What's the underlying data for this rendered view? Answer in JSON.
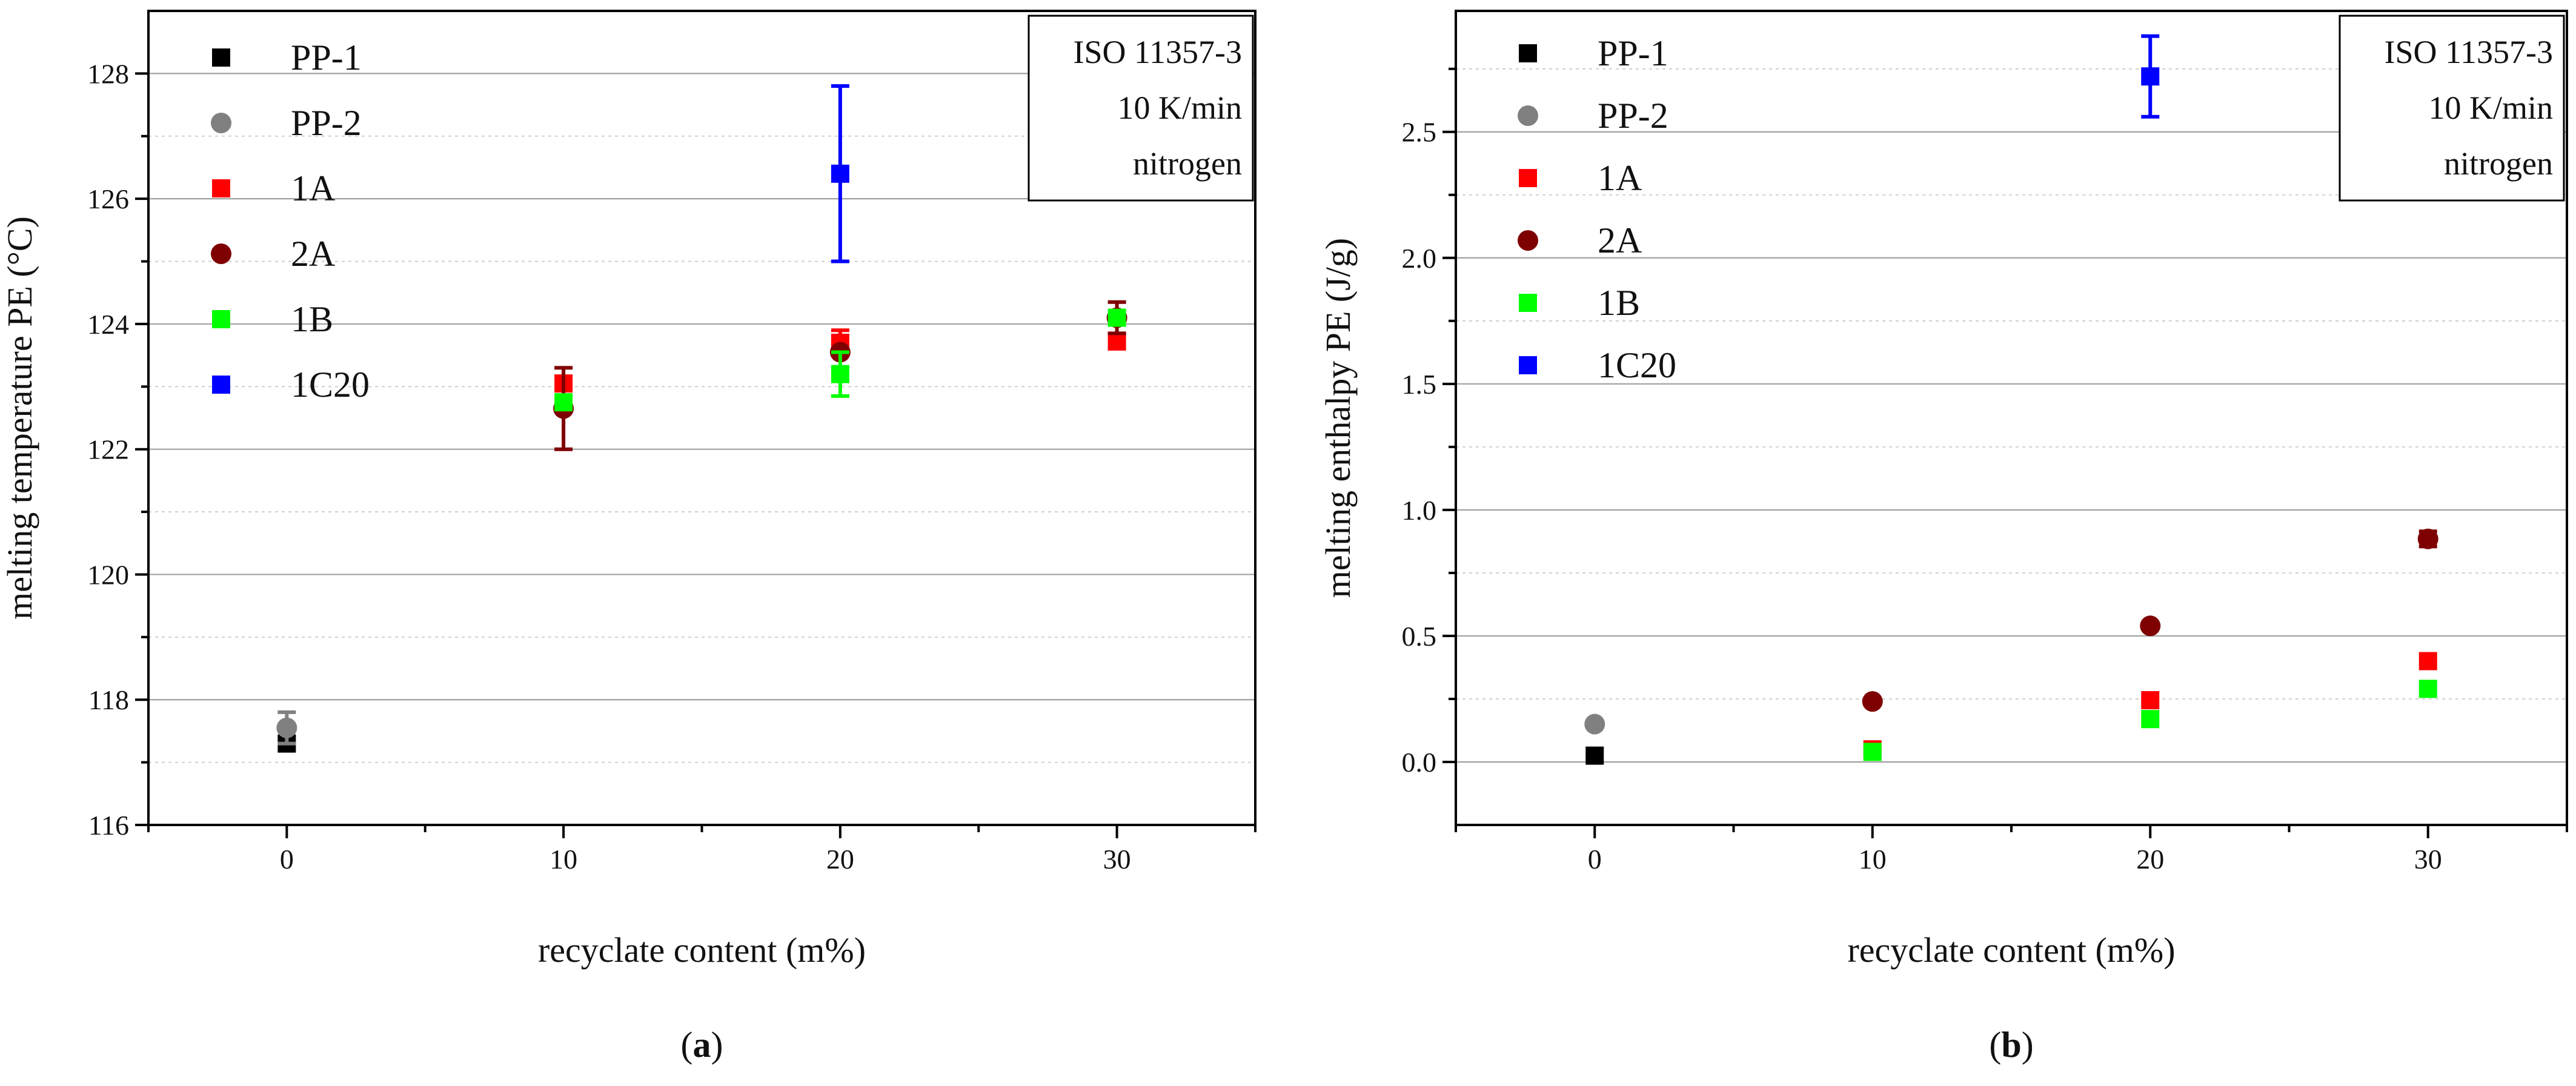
{
  "chart_data": [
    {
      "type": "scatter",
      "panel_label": "a",
      "xlabel": "recyclate content (m%)",
      "ylabel": "melting temperature PE (°C)",
      "xlim": [
        -5,
        35
      ],
      "ylim": [
        116,
        129
      ],
      "xticks": [
        0,
        10,
        20,
        30
      ],
      "yticks": [
        116,
        118,
        120,
        122,
        124,
        126,
        128
      ],
      "annotation": [
        "ISO 11357-3",
        "10 K/min",
        "nitrogen"
      ],
      "series": [
        {
          "name": "PP-1",
          "marker": "square",
          "color": "#000000",
          "points": [
            {
              "x": 0,
              "y": 117.3
            }
          ]
        },
        {
          "name": "PP-2",
          "marker": "circle",
          "color": "#808080",
          "points": [
            {
              "x": 0,
              "y": 117.55,
              "err": 0.25
            }
          ]
        },
        {
          "name": "1A",
          "marker": "square",
          "color": "#ff0000",
          "points": [
            {
              "x": 10,
              "y": 123.05
            },
            {
              "x": 20,
              "y": 123.7,
              "err": 0.2
            },
            {
              "x": 30,
              "y": 123.72
            }
          ]
        },
        {
          "name": "2A",
          "marker": "circle",
          "color": "#7f0000",
          "points": [
            {
              "x": 10,
              "y": 122.65,
              "err": 0.65
            },
            {
              "x": 20,
              "y": 123.55
            },
            {
              "x": 30,
              "y": 124.1,
              "err": 0.25
            }
          ]
        },
        {
          "name": "1B",
          "marker": "square",
          "color": "#00ff00",
          "points": [
            {
              "x": 10,
              "y": 122.75
            },
            {
              "x": 20,
              "y": 123.2,
              "err": 0.35
            },
            {
              "x": 30,
              "y": 124.1
            }
          ]
        },
        {
          "name": "1C20",
          "marker": "square",
          "color": "#0000ff",
          "points": [
            {
              "x": 20,
              "y": 126.4,
              "err": 1.4
            }
          ]
        }
      ]
    },
    {
      "type": "scatter",
      "panel_label": "b",
      "xlabel": "recyclate content (m%)",
      "ylabel": "melting enthalpy PE (J/g)",
      "xlim": [
        -5,
        35
      ],
      "ylim": [
        -0.25,
        2.98
      ],
      "xticks": [
        0,
        10,
        20,
        30
      ],
      "yticks": [
        0.0,
        0.5,
        1.0,
        1.5,
        2.0,
        2.5
      ],
      "ytick_labels": [
        "0.0",
        "0.5",
        "1.0",
        "1.5",
        "2.0",
        "2.5"
      ],
      "annotation": [
        "ISO 11357-3",
        "10 K/min",
        "nitrogen"
      ],
      "series": [
        {
          "name": "PP-1",
          "marker": "square",
          "color": "#000000",
          "points": [
            {
              "x": 0,
              "y": 0.025
            }
          ]
        },
        {
          "name": "PP-2",
          "marker": "circle",
          "color": "#808080",
          "points": [
            {
              "x": 0,
              "y": 0.15
            }
          ]
        },
        {
          "name": "1A",
          "marker": "square",
          "color": "#ff0000",
          "points": [
            {
              "x": 10,
              "y": 0.05
            },
            {
              "x": 20,
              "y": 0.245
            },
            {
              "x": 30,
              "y": 0.4
            }
          ]
        },
        {
          "name": "2A",
          "marker": "circle",
          "color": "#7f0000",
          "points": [
            {
              "x": 10,
              "y": 0.24
            },
            {
              "x": 20,
              "y": 0.54
            },
            {
              "x": 30,
              "y": 0.885,
              "err": 0.03
            }
          ]
        },
        {
          "name": "1B",
          "marker": "square",
          "color": "#00ff00",
          "points": [
            {
              "x": 10,
              "y": 0.04
            },
            {
              "x": 20,
              "y": 0.17
            },
            {
              "x": 30,
              "y": 0.29
            }
          ]
        },
        {
          "name": "1C20",
          "marker": "square",
          "color": "#0000ff",
          "points": [
            {
              "x": 20,
              "y": 2.72,
              "err": 0.16
            }
          ]
        }
      ]
    }
  ]
}
